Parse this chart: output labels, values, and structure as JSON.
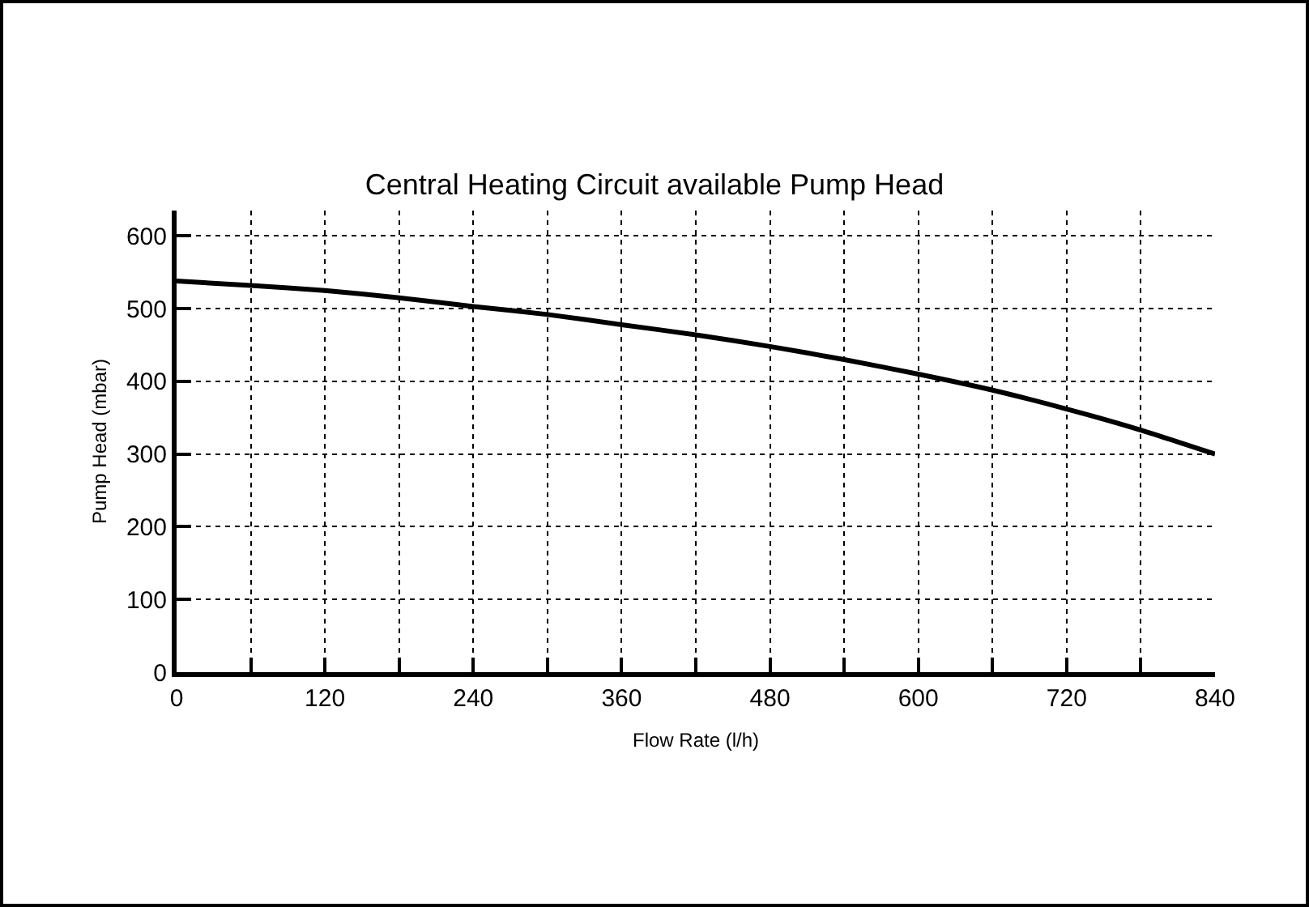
{
  "chart_data": {
    "type": "line",
    "title": "Central Heating Circuit available Pump Head",
    "xlabel": "Flow Rate (l/h)",
    "ylabel": "Pump Head (mbar)",
    "x": [
      0,
      60,
      120,
      180,
      240,
      300,
      360,
      420,
      480,
      540,
      600,
      660,
      720,
      780,
      840
    ],
    "series": [
      {
        "color": "#000000",
        "values": [
          538,
          532,
          525,
          515,
          503,
          492,
          478,
          464,
          448,
          430,
          410,
          388,
          362,
          333,
          300
        ]
      }
    ],
    "xlim": [
      0,
      840
    ],
    "ylim": [
      0,
      635
    ],
    "xticks": [
      0,
      {
        "value": 60,
        "label": null
      },
      120,
      {
        "value": 180,
        "label": null
      },
      240,
      {
        "value": 300,
        "label": null
      },
      360,
      {
        "value": 420,
        "label": null
      },
      480,
      {
        "value": 540,
        "label": null
      },
      600,
      {
        "value": 660,
        "label": null
      },
      720,
      {
        "value": 780,
        "label": null
      },
      840
    ],
    "yticks": [
      0,
      100,
      200,
      300,
      400,
      500,
      600
    ],
    "grid": true,
    "legend": false,
    "marker": "none",
    "line_style": "solid"
  }
}
